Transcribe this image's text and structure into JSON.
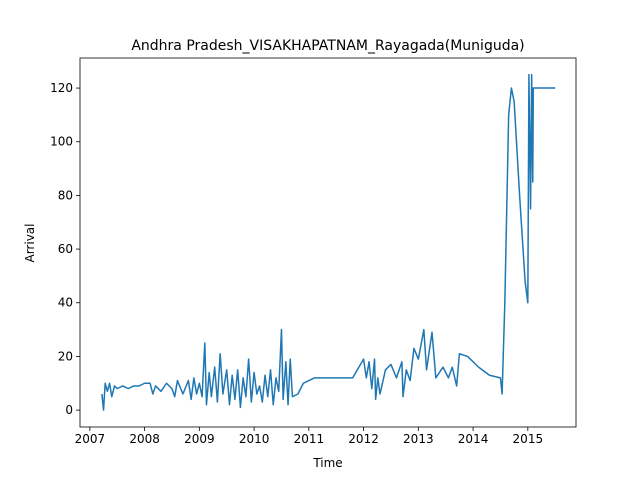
{
  "chart_data": {
    "type": "line",
    "title": "Andhra Pradesh_VISAKHAPATNAM_Rayagada(Muniguda)",
    "x_label": "Time",
    "y_label": "Arrival",
    "series": [
      {
        "name": "Arrival",
        "color": "#1f77b4",
        "x": [
          2007.22,
          2007.25,
          2007.28,
          2007.32,
          2007.36,
          2007.4,
          2007.45,
          2007.5,
          2007.6,
          2007.7,
          2007.8,
          2007.9,
          2008.0,
          2008.1,
          2008.15,
          2008.2,
          2008.3,
          2008.4,
          2008.5,
          2008.55,
          2008.6,
          2008.7,
          2008.8,
          2008.85,
          2008.9,
          2008.95,
          2009.0,
          2009.05,
          2009.1,
          2009.13,
          2009.18,
          2009.22,
          2009.28,
          2009.33,
          2009.38,
          2009.43,
          2009.5,
          2009.55,
          2009.6,
          2009.65,
          2009.7,
          2009.75,
          2009.8,
          2009.85,
          2009.9,
          2009.95,
          2010.0,
          2010.05,
          2010.1,
          2010.15,
          2010.2,
          2010.25,
          2010.3,
          2010.35,
          2010.4,
          2010.45,
          2010.5,
          2010.53,
          2010.58,
          2010.62,
          2010.66,
          2010.7,
          2010.8,
          2010.9,
          2011.1,
          2011.5,
          2011.8,
          2012.0,
          2012.05,
          2012.1,
          2012.15,
          2012.2,
          2012.22,
          2012.26,
          2012.3,
          2012.4,
          2012.5,
          2012.6,
          2012.7,
          2012.72,
          2012.78,
          2012.85,
          2012.92,
          2013.0,
          2013.1,
          2013.15,
          2013.25,
          2013.32,
          2013.45,
          2013.55,
          2013.62,
          2013.7,
          2013.75,
          2013.9,
          2014.1,
          2014.3,
          2014.5,
          2014.53,
          2014.58,
          2014.65,
          2014.7,
          2014.75,
          2014.85,
          2014.95,
          2015.0,
          2015.02,
          2015.05,
          2015.07,
          2015.09,
          2015.1,
          2015.5
        ],
        "values": [
          6,
          0,
          10,
          7,
          10,
          5,
          9,
          8,
          9,
          8,
          9,
          9,
          10,
          10,
          6,
          9,
          7,
          10,
          8,
          5,
          11,
          6,
          11,
          4,
          12,
          6,
          10,
          5,
          25,
          2,
          14,
          5,
          16,
          3,
          21,
          6,
          15,
          2,
          13,
          4,
          15,
          1,
          12,
          5,
          19,
          3,
          14,
          6,
          9,
          3,
          13,
          5,
          15,
          2,
          12,
          7,
          30,
          4,
          18,
          2,
          19,
          5,
          6,
          10,
          12,
          12,
          12,
          19,
          12,
          18,
          8,
          19,
          4,
          12,
          6,
          15,
          17,
          12,
          18,
          5,
          15,
          11,
          23,
          19,
          30,
          15,
          29,
          12,
          16,
          12,
          16,
          9,
          21,
          20,
          16,
          13,
          12,
          6,
          40,
          110,
          120,
          115,
          80,
          48,
          40,
          125,
          75,
          125,
          85,
          120,
          120
        ]
      }
    ],
    "xlim": [
      2006.82,
      2015.88
    ],
    "ylim": [
      -6.3,
      131.2
    ],
    "xticks": [
      2007,
      2008,
      2009,
      2010,
      2011,
      2012,
      2013,
      2014,
      2015
    ],
    "yticks": [
      0,
      20,
      40,
      60,
      80,
      100,
      120
    ]
  }
}
